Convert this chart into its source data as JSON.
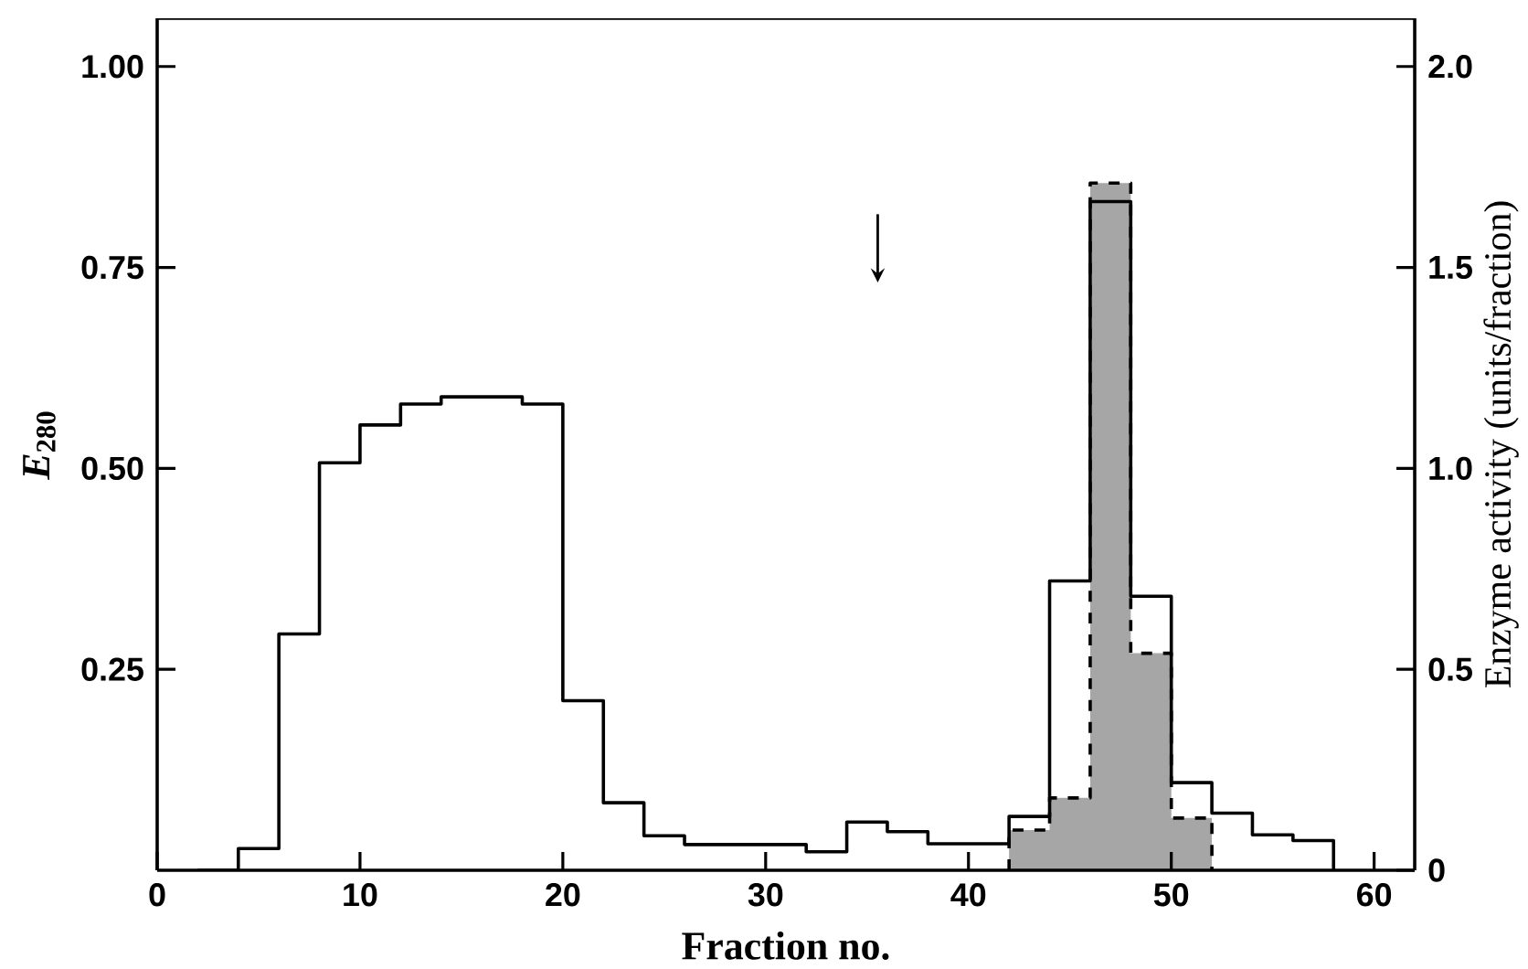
{
  "chart_data": {
    "type": "step",
    "xlabel": "Fraction no.",
    "ylabel": "*E*$_{280}$",
    "y2label": "Enzyme activity (units/fraction)",
    "xlim": [
      0,
      62
    ],
    "ylim": [
      0,
      1.06
    ],
    "y2lim": [
      0,
      2.12
    ],
    "xticks": [
      0,
      10,
      20,
      30,
      40,
      50,
      60
    ],
    "yticks": [
      0.25,
      {
        "value": 0.5,
        "label": "0.50"
      },
      0.75,
      {
        "value": 1.0,
        "label": "1.00"
      }
    ],
    "y2ticks": [
      0,
      0.5,
      {
        "value": 1.0,
        "label": "1.0"
      },
      1.5,
      {
        "value": 2.0,
        "label": "2.0"
      }
    ],
    "grid": false,
    "series": [
      {
        "color": "#000000",
        "line_style": "solid",
        "x": [
          2,
          4,
          6,
          8,
          10,
          12,
          14,
          16,
          18,
          20,
          22,
          24,
          26,
          28,
          30,
          32,
          34,
          36,
          38,
          40,
          42,
          44,
          46,
          48,
          50,
          52,
          54,
          56,
          58
        ],
        "values": [
          0,
          0.027,
          0.294,
          0.507,
          0.554,
          0.58,
          0.589,
          0.589,
          0.58,
          0.211,
          0.084,
          0.043,
          0.032,
          0.032,
          0.032,
          0.023,
          0.06,
          0.048,
          0.033,
          0.033,
          0.067,
          0.36,
          0.832,
          0.341,
          0.109,
          0.071,
          0.044,
          0.037,
          0
        ]
      },
      {
        "type": "area",
        "color": "#a6a6a6",
        "line_style": "dashed",
        "axis": "y2",
        "x": [
          42,
          44,
          46,
          48,
          50,
          52
        ],
        "values": [
          0.1,
          0.18,
          1.71,
          0.54,
          0.13,
          0.13
        ]
      }
    ]
  }
}
